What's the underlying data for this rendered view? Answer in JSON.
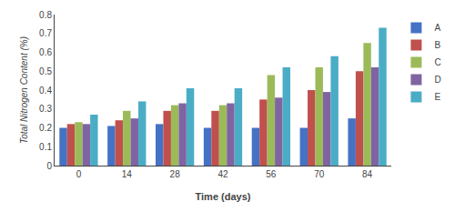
{
  "chart_data": {
    "type": "bar",
    "x": [
      0,
      14,
      28,
      42,
      56,
      70,
      84
    ],
    "series": [
      {
        "name": "A",
        "color": "#4472c4",
        "values": [
          0.2,
          0.21,
          0.22,
          0.2,
          0.2,
          0.2,
          0.25
        ]
      },
      {
        "name": "B",
        "color": "#c0504d",
        "values": [
          0.22,
          0.24,
          0.29,
          0.29,
          0.35,
          0.4,
          0.5
        ]
      },
      {
        "name": "C",
        "color": "#9bbb59",
        "values": [
          0.23,
          0.29,
          0.32,
          0.32,
          0.48,
          0.52,
          0.65
        ]
      },
      {
        "name": "D",
        "color": "#8064a2",
        "values": [
          0.22,
          0.25,
          0.33,
          0.33,
          0.36,
          0.39,
          0.52
        ]
      },
      {
        "name": "E",
        "color": "#4bacc6",
        "values": [
          0.27,
          0.34,
          0.41,
          0.41,
          0.52,
          0.58,
          0.73
        ]
      }
    ],
    "xlabel": "Time (days)",
    "ylabel": "Total Nitrogen Content (%)",
    "xlim": [
      -7,
      91
    ],
    "xticks": [
      0,
      14,
      28,
      42,
      56,
      70,
      84
    ],
    "ylim": [
      0,
      0.8
    ],
    "yticks": [
      0,
      0.1,
      0.2,
      0.3,
      0.4,
      0.5,
      0.6,
      0.7,
      0.8
    ],
    "grid": false,
    "legend": "right"
  }
}
